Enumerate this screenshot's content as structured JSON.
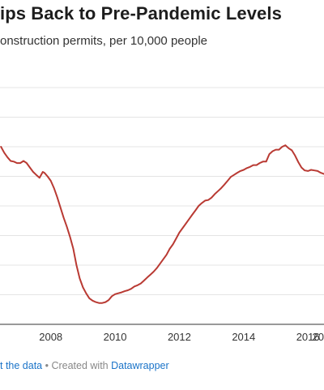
{
  "chart_data": {
    "type": "line",
    "title": "ips Back to Pre-Pandemic Levels",
    "subtitle": "onstruction permits, per 10,000 people",
    "xlabel": "",
    "ylabel": "",
    "xticks": [
      "2008",
      "2010",
      "2012",
      "2014",
      "2016",
      "20"
    ],
    "xlim": [
      2006.42,
      2016.5
    ],
    "ylim": [
      0,
      8
    ],
    "grid": true,
    "line_color": "#b93a33",
    "series": [
      {
        "x": [
          2006.45,
          2006.55,
          2006.65,
          2006.75,
          2006.85,
          2006.95,
          2007.05,
          2007.15,
          2007.25,
          2007.35,
          2007.45,
          2007.55,
          2007.65,
          2007.75,
          2007.8,
          2007.9,
          2008.0,
          2008.1,
          2008.2,
          2008.3,
          2008.4,
          2008.5,
          2008.6,
          2008.7,
          2008.8,
          2008.9,
          2009.0,
          2009.1,
          2009.2,
          2009.3,
          2009.4,
          2009.5,
          2009.6,
          2009.7,
          2009.8,
          2009.9,
          2010.0,
          2010.1,
          2010.2,
          2010.3,
          2010.4,
          2010.5,
          2010.6,
          2010.7,
          2010.8,
          2010.9,
          2011.0,
          2011.1,
          2011.2,
          2011.3,
          2011.4,
          2011.5,
          2011.6,
          2011.7,
          2011.8,
          2011.9,
          2012.0,
          2012.1,
          2012.2,
          2012.3,
          2012.4,
          2012.5,
          2012.6,
          2012.7,
          2012.8,
          2012.9,
          2013.0,
          2013.1,
          2013.2,
          2013.3,
          2013.4,
          2013.5,
          2013.6,
          2013.7,
          2013.8,
          2013.9,
          2014.0,
          2014.1,
          2014.2,
          2014.3,
          2014.4,
          2014.5,
          2014.6,
          2014.7,
          2014.8,
          2014.9,
          2015.0,
          2015.1,
          2015.2,
          2015.3,
          2015.4,
          2015.5,
          2015.6,
          2015.7,
          2015.8,
          2015.9,
          2016.0,
          2016.1,
          2016.2,
          2016.3,
          2016.4,
          2016.5
        ],
        "y": [
          6.0,
          5.8,
          5.65,
          5.52,
          5.5,
          5.45,
          5.45,
          5.52,
          5.45,
          5.3,
          5.15,
          5.05,
          4.95,
          5.15,
          5.12,
          5.0,
          4.85,
          4.6,
          4.3,
          3.95,
          3.6,
          3.3,
          2.95,
          2.55,
          2.0,
          1.55,
          1.25,
          1.05,
          0.88,
          0.8,
          0.75,
          0.72,
          0.72,
          0.75,
          0.82,
          0.95,
          1.02,
          1.05,
          1.08,
          1.12,
          1.15,
          1.2,
          1.28,
          1.32,
          1.38,
          1.48,
          1.58,
          1.68,
          1.78,
          1.9,
          2.05,
          2.2,
          2.35,
          2.55,
          2.7,
          2.9,
          3.1,
          3.25,
          3.4,
          3.55,
          3.7,
          3.85,
          4.0,
          4.1,
          4.18,
          4.2,
          4.28,
          4.4,
          4.5,
          4.6,
          4.72,
          4.85,
          4.98,
          5.05,
          5.12,
          5.18,
          5.22,
          5.28,
          5.32,
          5.38,
          5.38,
          5.45,
          5.5,
          5.5,
          5.75,
          5.85,
          5.9,
          5.9,
          6.0,
          6.05,
          5.95,
          5.88,
          5.7,
          5.48,
          5.3,
          5.2,
          5.18,
          5.22,
          5.2,
          5.18,
          5.12,
          5.08
        ]
      }
    ]
  },
  "footer": {
    "source_link": "t the data",
    "separator": " • Created with ",
    "tool_link": "Datawrapper"
  }
}
